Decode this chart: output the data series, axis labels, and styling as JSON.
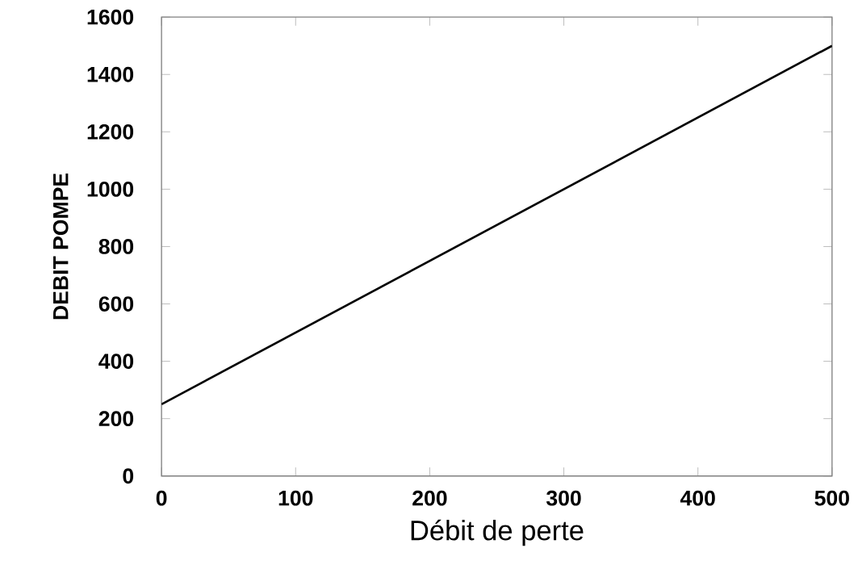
{
  "chart_data": {
    "type": "line",
    "xlabel": "Débit de perte",
    "ylabel": "DEBIT POMPE",
    "x": [
      0,
      500
    ],
    "values": [
      250,
      1500
    ],
    "color": "#000000",
    "xlim": [
      0,
      500
    ],
    "ylim": [
      0,
      1600
    ],
    "xticks": [
      0,
      100,
      200,
      300,
      400,
      500
    ],
    "yticks": [
      0,
      200,
      400,
      600,
      800,
      1000,
      1200,
      1400,
      1600
    ],
    "grid": false
  }
}
